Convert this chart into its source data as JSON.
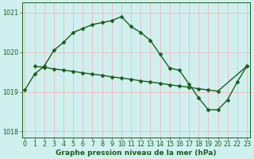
{
  "line1_x": [
    0,
    1,
    2,
    3,
    4,
    5,
    6,
    7,
    8,
    9,
    10,
    11,
    12,
    13,
    14,
    15,
    16,
    17,
    18,
    19,
    20,
    21,
    22,
    23
  ],
  "line1_y": [
    1019.05,
    1019.45,
    1019.65,
    1020.05,
    1020.25,
    1020.5,
    1020.6,
    1020.7,
    1020.75,
    1020.8,
    1020.9,
    1020.65,
    1020.5,
    1020.3,
    1019.95,
    1019.6,
    1019.55,
    1019.2,
    1018.85,
    1018.55,
    1018.55,
    1018.8,
    1019.25,
    1019.65
  ],
  "line2_x": [
    1,
    2,
    3,
    4,
    5,
    6,
    7,
    8,
    9,
    10,
    11,
    12,
    13,
    14,
    15,
    16,
    17,
    18,
    19,
    20,
    23
  ],
  "line2_y": [
    1019.65,
    1019.62,
    1019.58,
    1019.55,
    1019.52,
    1019.48,
    1019.45,
    1019.42,
    1019.38,
    1019.35,
    1019.32,
    1019.28,
    1019.25,
    1019.22,
    1019.18,
    1019.15,
    1019.12,
    1019.08,
    1019.05,
    1019.02,
    1019.65
  ],
  "bg_color": "#d0f0f0",
  "grid_color": "#f0b8b8",
  "line_color": "#1a5e1a",
  "marker": "D",
  "markersize": 2.5,
  "linewidth": 1.0,
  "xlabel": "Graphe pression niveau de la mer (hPa)",
  "ylim": [
    1017.85,
    1021.25
  ],
  "xlim": [
    -0.3,
    23.3
  ],
  "yticks": [
    1018,
    1019,
    1020,
    1021
  ],
  "xticks": [
    0,
    1,
    2,
    3,
    4,
    5,
    6,
    7,
    8,
    9,
    10,
    11,
    12,
    13,
    14,
    15,
    16,
    17,
    18,
    19,
    20,
    21,
    22,
    23
  ],
  "xlabel_fontsize": 6.5,
  "tick_fontsize": 5.8
}
